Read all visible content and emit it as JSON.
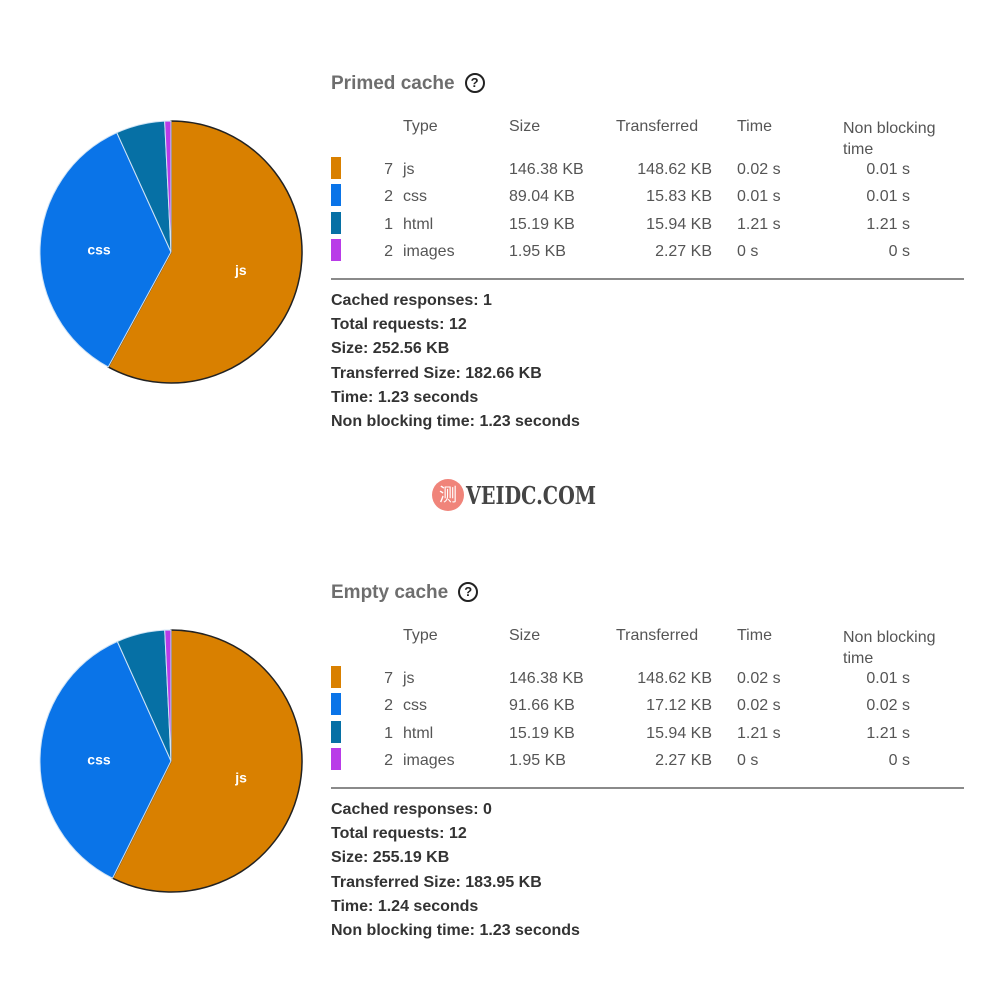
{
  "colors": {
    "js": "#d98000",
    "css": "#0a74e8",
    "html": "#0670a5",
    "images": "#b93be8"
  },
  "headers": {
    "type": "Type",
    "size": "Size",
    "transferred": "Transferred",
    "time": "Time",
    "non_blocking": "Non blocking time"
  },
  "sections": [
    {
      "title": "Primed cache",
      "help_icon": "?",
      "rows": [
        {
          "count": "7",
          "type": "js",
          "size": "146.38 KB",
          "transferred": "148.62 KB",
          "time": "0.02 s",
          "non_blocking": "0.01 s"
        },
        {
          "count": "2",
          "type": "css",
          "size": "89.04 KB",
          "transferred": "15.83 KB",
          "time": "0.01 s",
          "non_blocking": "0.01 s"
        },
        {
          "count": "1",
          "type": "html",
          "size": "15.19 KB",
          "transferred": "15.94 KB",
          "time": "1.21 s",
          "non_blocking": "1.21 s"
        },
        {
          "count": "2",
          "type": "images",
          "size": "1.95 KB",
          "transferred": "2.27 KB",
          "time": "0 s",
          "non_blocking": "0 s"
        }
      ],
      "summary": [
        "Cached responses: 1",
        "Total requests: 12",
        "Size: 252.56 KB",
        "Transferred Size: 182.66 KB",
        "Time: 1.23 seconds",
        "Non blocking time: 1.23 seconds"
      ]
    },
    {
      "title": "Empty cache",
      "help_icon": "?",
      "rows": [
        {
          "count": "7",
          "type": "js",
          "size": "146.38 KB",
          "transferred": "148.62 KB",
          "time": "0.02 s",
          "non_blocking": "0.01 s"
        },
        {
          "count": "2",
          "type": "css",
          "size": "91.66 KB",
          "transferred": "17.12 KB",
          "time": "0.02 s",
          "non_blocking": "0.02 s"
        },
        {
          "count": "1",
          "type": "html",
          "size": "15.19 KB",
          "transferred": "15.94 KB",
          "time": "1.21 s",
          "non_blocking": "1.21 s"
        },
        {
          "count": "2",
          "type": "images",
          "size": "1.95 KB",
          "transferred": "2.27 KB",
          "time": "0 s",
          "non_blocking": "0 s"
        }
      ],
      "summary": [
        "Cached responses: 0",
        "Total requests: 12",
        "Size: 255.19 KB",
        "Transferred Size: 183.95 KB",
        "Time: 1.24 seconds",
        "Non blocking time: 1.23 seconds"
      ]
    }
  ],
  "chart_data": [
    {
      "type": "pie",
      "labels": [
        "js",
        "css",
        "html",
        "images"
      ],
      "values": [
        146.38,
        89.04,
        15.19,
        1.95
      ],
      "slice_labels_shown": [
        "js",
        "css"
      ],
      "start": "top",
      "direction": "clockwise"
    },
    {
      "type": "pie",
      "labels": [
        "js",
        "css",
        "html",
        "images"
      ],
      "values": [
        146.38,
        91.66,
        15.19,
        1.95
      ],
      "slice_labels_shown": [
        "js",
        "css"
      ],
      "start": "top",
      "direction": "clockwise"
    }
  ],
  "watermark": {
    "badge": "测",
    "text": "VEIDC.COM"
  }
}
